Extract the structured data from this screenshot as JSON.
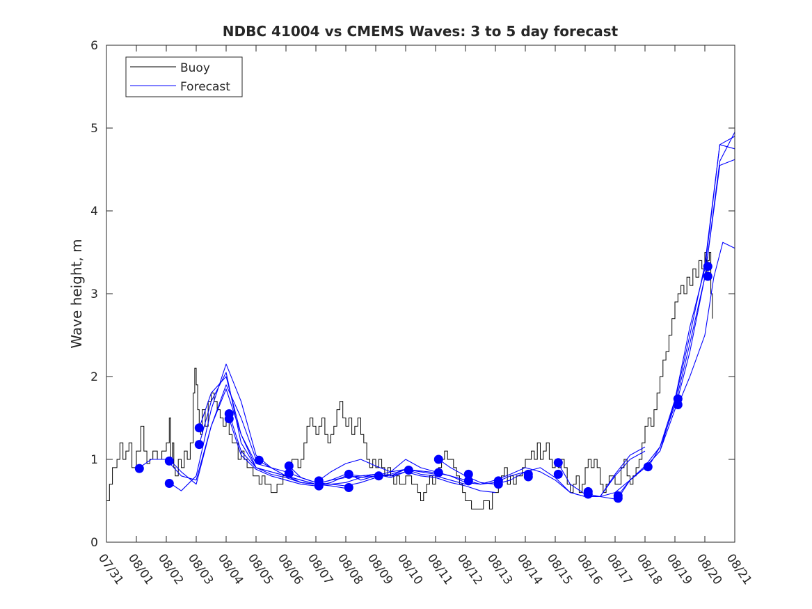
{
  "colors": {
    "buoy": "#000000",
    "forecast": "#0000ff",
    "axes": "#262626",
    "background": "#ffffff"
  },
  "chart_data": {
    "type": "line",
    "title": "NDBC 41004 vs CMEMS Waves: 3 to 5 day forecast",
    "xlabel": "",
    "ylabel": "Wave height, m",
    "xlim": [
      "07/31",
      "08/21"
    ],
    "ylim": [
      0,
      6
    ],
    "grid": false,
    "legend_position": "top-left",
    "x_tick_labels": [
      "07/31",
      "08/01",
      "08/02",
      "08/03",
      "08/04",
      "08/05",
      "08/06",
      "08/07",
      "08/08",
      "08/09",
      "08/10",
      "08/11",
      "08/12",
      "08/13",
      "08/14",
      "08/15",
      "08/16",
      "08/17",
      "08/18",
      "08/19",
      "08/20",
      "08/21"
    ],
    "y_ticks": [
      0,
      1,
      2,
      3,
      4,
      5,
      6
    ],
    "legend": [
      {
        "label": "Buoy",
        "color": "#000000"
      },
      {
        "label": "Forecast",
        "color": "#0000ff"
      }
    ],
    "buoy": {
      "name": "Buoy",
      "x": [
        0.0,
        0.1,
        0.2,
        0.35,
        0.45,
        0.55,
        0.65,
        0.75,
        0.85,
        1.0,
        1.15,
        1.25,
        1.35,
        1.45,
        1.55,
        1.7,
        1.85,
        2.0,
        2.1,
        2.15,
        2.2,
        2.25,
        2.3,
        2.4,
        2.5,
        2.6,
        2.7,
        2.8,
        2.9,
        2.95,
        3.0,
        3.05,
        3.1,
        3.15,
        3.2,
        3.3,
        3.4,
        3.5,
        3.6,
        3.7,
        3.8,
        3.9,
        4.0,
        4.1,
        4.2,
        4.3,
        4.4,
        4.5,
        4.6,
        4.7,
        4.8,
        4.9,
        5.0,
        5.1,
        5.2,
        5.3,
        5.4,
        5.5,
        5.6,
        5.7,
        5.8,
        5.9,
        6.0,
        6.1,
        6.2,
        6.3,
        6.4,
        6.5,
        6.6,
        6.7,
        6.8,
        6.9,
        7.0,
        7.1,
        7.2,
        7.3,
        7.4,
        7.5,
        7.6,
        7.7,
        7.8,
        7.9,
        8.0,
        8.1,
        8.2,
        8.3,
        8.4,
        8.5,
        8.6,
        8.7,
        8.8,
        8.9,
        9.0,
        9.1,
        9.2,
        9.3,
        9.4,
        9.5,
        9.6,
        9.7,
        9.8,
        9.9,
        10.0,
        10.1,
        10.2,
        10.3,
        10.4,
        10.5,
        10.6,
        10.7,
        10.8,
        10.9,
        11.0,
        11.1,
        11.2,
        11.3,
        11.4,
        11.5,
        11.6,
        11.7,
        11.8,
        11.9,
        12.0,
        12.1,
        12.2,
        12.3,
        12.4,
        12.5,
        12.6,
        12.7,
        12.8,
        12.9,
        13.0,
        13.1,
        13.2,
        13.3,
        13.4,
        13.5,
        13.6,
        13.7,
        13.8,
        13.9,
        14.0,
        14.1,
        14.2,
        14.3,
        14.4,
        14.5,
        14.6,
        14.7,
        14.8,
        14.9,
        15.0,
        15.1,
        15.2,
        15.3,
        15.4,
        15.5,
        15.6,
        15.7,
        15.8,
        15.9,
        16.0,
        16.1,
        16.2,
        16.3,
        16.4,
        16.5,
        16.6,
        16.7,
        16.8,
        16.9,
        17.0,
        17.1,
        17.2,
        17.3,
        17.4,
        17.5,
        17.6,
        17.7,
        17.8,
        17.9,
        18.0,
        18.1,
        18.2,
        18.3,
        18.4,
        18.5,
        18.6,
        18.7,
        18.8,
        18.9,
        19.0,
        19.1,
        19.2,
        19.3,
        19.4,
        19.5,
        19.6,
        19.7,
        19.8,
        19.9,
        20.0,
        20.05,
        20.1,
        20.15,
        20.2,
        20.25
      ],
      "values": [
        0.5,
        0.7,
        0.9,
        1.0,
        1.2,
        1.0,
        1.1,
        1.2,
        0.9,
        1.1,
        1.4,
        1.1,
        0.95,
        1.0,
        1.1,
        1.0,
        1.1,
        1.2,
        1.5,
        1.0,
        1.2,
        0.9,
        0.8,
        1.0,
        0.9,
        1.1,
        1.0,
        1.2,
        1.8,
        2.1,
        1.9,
        1.6,
        1.4,
        1.3,
        1.6,
        1.4,
        1.7,
        1.8,
        1.7,
        1.6,
        1.5,
        1.4,
        1.5,
        1.3,
        1.2,
        1.2,
        1.0,
        1.1,
        1.0,
        0.9,
        0.9,
        0.8,
        0.8,
        0.7,
        0.8,
        0.7,
        0.7,
        0.6,
        0.6,
        0.7,
        0.7,
        0.8,
        0.8,
        0.9,
        1.0,
        1.0,
        0.9,
        1.0,
        1.2,
        1.4,
        1.5,
        1.4,
        1.3,
        1.4,
        1.5,
        1.3,
        1.2,
        1.3,
        1.4,
        1.6,
        1.7,
        1.5,
        1.4,
        1.5,
        1.3,
        1.4,
        1.5,
        1.3,
        1.2,
        1.0,
        0.9,
        1.0,
        0.9,
        1.0,
        0.9,
        0.8,
        0.9,
        0.8,
        0.7,
        0.8,
        0.7,
        0.7,
        0.8,
        0.8,
        0.7,
        0.7,
        0.6,
        0.5,
        0.6,
        0.7,
        0.8,
        0.7,
        0.8,
        0.9,
        1.0,
        1.1,
        1.0,
        1.0,
        0.9,
        0.8,
        0.7,
        0.6,
        0.5,
        0.5,
        0.4,
        0.4,
        0.4,
        0.4,
        0.5,
        0.5,
        0.4,
        0.6,
        0.6,
        0.7,
        0.8,
        0.9,
        0.7,
        0.8,
        0.7,
        0.8,
        0.8,
        0.9,
        1.0,
        1.0,
        1.1,
        1.0,
        1.2,
        1.0,
        1.1,
        1.2,
        1.0,
        0.9,
        1.0,
        0.9,
        1.0,
        0.9,
        0.7,
        0.6,
        0.7,
        0.8,
        0.6,
        0.7,
        0.9,
        1.0,
        0.9,
        1.0,
        0.9,
        0.7,
        0.6,
        0.7,
        0.8,
        0.8,
        0.7,
        0.7,
        0.9,
        1.0,
        0.8,
        0.7,
        0.8,
        0.9,
        1.0,
        1.2,
        1.4,
        1.5,
        1.4,
        1.6,
        1.8,
        2.0,
        2.2,
        2.3,
        2.5,
        2.7,
        2.9,
        3.0,
        3.1,
        3.0,
        3.2,
        3.1,
        3.3,
        3.2,
        3.4,
        3.3,
        3.5,
        3.2,
        3.4,
        3.5,
        3.0,
        2.7
      ]
    },
    "forecast": {
      "name": "Forecast",
      "series": [
        {
          "x": [
            1.1,
            1.5,
            2.0,
            2.5,
            3.0,
            3.5,
            4.0,
            4.5,
            5.0,
            5.5,
            6.0,
            6.5,
            7.0
          ],
          "values": [
            0.9,
            1.0,
            1.0,
            0.8,
            0.75,
            1.4,
            1.9,
            1.5,
            1.0,
            0.9,
            0.8,
            0.72,
            0.7
          ]
        },
        {
          "x": [
            2.1,
            2.5,
            3.0,
            3.5,
            4.0,
            4.5,
            5.0,
            5.5,
            6.0,
            6.5,
            7.0,
            7.5,
            8.0
          ],
          "values": [
            1.0,
            0.85,
            0.7,
            1.4,
            1.85,
            1.3,
            0.9,
            0.85,
            0.8,
            0.75,
            0.7,
            0.68,
            0.65
          ]
        },
        {
          "x": [
            2.1,
            2.5,
            3.0,
            3.5,
            4.0,
            4.5,
            5.0,
            5.5,
            6.0,
            6.5,
            7.0,
            7.5,
            8.0,
            8.5,
            9.0
          ],
          "values": [
            0.72,
            0.62,
            0.8,
            1.6,
            2.15,
            1.7,
            1.05,
            0.9,
            0.8,
            0.72,
            0.7,
            0.7,
            0.68,
            0.72,
            0.78
          ]
        },
        {
          "x": [
            3.1,
            3.5,
            4.0,
            4.5,
            5.0,
            5.5,
            6.0,
            6.5,
            7.0,
            7.5,
            8.0,
            8.5,
            9.0,
            9.5,
            10.0
          ],
          "values": [
            1.38,
            1.8,
            2.0,
            1.3,
            0.95,
            0.9,
            0.85,
            0.78,
            0.72,
            0.7,
            0.72,
            0.78,
            0.82,
            0.8,
            0.85
          ]
        },
        {
          "x": [
            3.1,
            3.5,
            4.0,
            4.5,
            5.0,
            5.5,
            6.0,
            6.5,
            7.0,
            7.5,
            8.0,
            8.5,
            9.0,
            9.5,
            10.0,
            10.5,
            11.0
          ],
          "values": [
            1.18,
            1.7,
            2.05,
            1.2,
            0.9,
            0.85,
            0.8,
            0.75,
            0.7,
            0.75,
            0.78,
            0.8,
            0.82,
            0.8,
            0.88,
            0.85,
            0.82
          ]
        },
        {
          "x": [
            4.1,
            4.5,
            5.0,
            5.5,
            6.0,
            6.5,
            7.0,
            7.5,
            8.0,
            8.5,
            9.0,
            9.5,
            10.0,
            10.5,
            11.0,
            11.5,
            12.0
          ],
          "values": [
            1.49,
            1.05,
            0.88,
            0.8,
            0.75,
            0.7,
            0.68,
            0.72,
            0.8,
            0.78,
            0.8,
            0.82,
            0.88,
            0.82,
            0.8,
            0.75,
            0.7
          ]
        },
        {
          "x": [
            4.1,
            4.5,
            5.0,
            5.5,
            6.0,
            6.5,
            7.0,
            7.5,
            8.0,
            8.5,
            9.0,
            9.5,
            10.0,
            10.5,
            11.0,
            11.5,
            12.0,
            12.5,
            13.0
          ],
          "values": [
            1.55,
            1.1,
            0.9,
            0.82,
            0.78,
            0.72,
            0.7,
            0.75,
            0.82,
            0.8,
            0.82,
            0.78,
            0.85,
            0.8,
            0.78,
            0.72,
            0.68,
            0.62,
            0.6
          ]
        },
        {
          "x": [
            6.1,
            6.5,
            7.0,
            7.5,
            8.0,
            8.5,
            9.0,
            9.5,
            10.0,
            10.5,
            11.0,
            11.5,
            12.0,
            12.5,
            13.0,
            13.5,
            14.0
          ],
          "values": [
            0.92,
            0.78,
            0.72,
            0.85,
            0.95,
            1.0,
            0.92,
            0.85,
            1.0,
            0.9,
            0.85,
            0.8,
            0.75,
            0.7,
            0.72,
            0.8,
            0.85
          ]
        },
        {
          "x": [
            8.1,
            8.5,
            9.0,
            9.5,
            10.0,
            10.5,
            11.0,
            11.5,
            12.0,
            12.5,
            13.0,
            13.5,
            14.0,
            14.5,
            15.0,
            15.5,
            16.0,
            16.5,
            17.0,
            17.5,
            18.0
          ],
          "values": [
            0.82,
            0.75,
            0.8,
            0.85,
            0.88,
            0.86,
            0.84,
            0.8,
            0.72,
            0.7,
            0.75,
            0.82,
            0.9,
            0.85,
            0.75,
            0.6,
            0.55,
            0.55,
            0.8,
            1.0,
            1.1
          ]
        },
        {
          "x": [
            11.1,
            11.5,
            12.0,
            12.5,
            13.0,
            13.5,
            14.0,
            14.5,
            15.0,
            15.5,
            16.0,
            16.5,
            17.0,
            17.5,
            18.0
          ],
          "values": [
            1.0,
            0.9,
            0.8,
            0.72,
            0.7,
            0.75,
            0.85,
            0.9,
            0.78,
            0.6,
            0.55,
            0.55,
            0.82,
            1.05,
            1.15
          ]
        },
        {
          "x": [
            15.1,
            15.5,
            16.0,
            16.5,
            17.0,
            17.5,
            18.0,
            18.5,
            19.0,
            19.5,
            20.0,
            20.5,
            21.0
          ],
          "values": [
            0.95,
            0.7,
            0.58,
            0.55,
            0.6,
            0.75,
            0.9,
            1.1,
            1.6,
            2.3,
            3.2,
            4.6,
            4.95
          ]
        },
        {
          "x": [
            16.1,
            16.5,
            17.0,
            17.5,
            18.0,
            18.5,
            19.0,
            19.5,
            20.0,
            20.5,
            21.0
          ],
          "values": [
            0.58,
            0.55,
            0.52,
            0.75,
            0.9,
            1.1,
            1.7,
            2.5,
            3.35,
            4.8,
            4.75
          ]
        },
        {
          "x": [
            17.1,
            17.5,
            18.0,
            18.5,
            19.0,
            19.5,
            20.0,
            20.5,
            21.0
          ],
          "values": [
            0.53,
            0.75,
            0.92,
            1.15,
            1.65,
            2.4,
            3.2,
            4.55,
            4.62
          ]
        },
        {
          "x": [
            18.1,
            18.5,
            19.0,
            19.5,
            20.0,
            20.5,
            21.0
          ],
          "values": [
            0.9,
            1.15,
            1.72,
            2.6,
            3.3,
            4.8,
            4.9
          ]
        },
        {
          "x": [
            19.1,
            19.5,
            20.0,
            20.3,
            20.6,
            21.0
          ],
          "values": [
            1.65,
            2.0,
            2.5,
            3.2,
            3.62,
            3.55
          ]
        }
      ],
      "markers": [
        {
          "x": 1.1,
          "y": 0.89
        },
        {
          "x": 2.1,
          "y": 0.98
        },
        {
          "x": 2.1,
          "y": 0.71
        },
        {
          "x": 3.1,
          "y": 1.38
        },
        {
          "x": 3.1,
          "y": 1.18
        },
        {
          "x": 4.1,
          "y": 1.55
        },
        {
          "x": 4.1,
          "y": 1.49
        },
        {
          "x": 5.1,
          "y": 0.99
        },
        {
          "x": 6.1,
          "y": 0.92
        },
        {
          "x": 6.1,
          "y": 0.83
        },
        {
          "x": 7.1,
          "y": 0.74
        },
        {
          "x": 7.1,
          "y": 0.68
        },
        {
          "x": 8.1,
          "y": 0.82
        },
        {
          "x": 8.1,
          "y": 0.66
        },
        {
          "x": 9.1,
          "y": 0.8
        },
        {
          "x": 10.1,
          "y": 0.87
        },
        {
          "x": 11.1,
          "y": 1.0
        },
        {
          "x": 11.1,
          "y": 0.84
        },
        {
          "x": 12.1,
          "y": 0.82
        },
        {
          "x": 12.1,
          "y": 0.74
        },
        {
          "x": 13.1,
          "y": 0.74
        },
        {
          "x": 13.1,
          "y": 0.7
        },
        {
          "x": 14.1,
          "y": 0.82
        },
        {
          "x": 14.1,
          "y": 0.79
        },
        {
          "x": 15.1,
          "y": 0.96
        },
        {
          "x": 15.1,
          "y": 0.82
        },
        {
          "x": 16.1,
          "y": 0.61
        },
        {
          "x": 16.1,
          "y": 0.58
        },
        {
          "x": 17.1,
          "y": 0.56
        },
        {
          "x": 17.1,
          "y": 0.53
        },
        {
          "x": 18.1,
          "y": 0.91
        },
        {
          "x": 19.1,
          "y": 1.73
        },
        {
          "x": 19.1,
          "y": 1.66
        },
        {
          "x": 20.1,
          "y": 3.33
        },
        {
          "x": 20.1,
          "y": 3.21
        }
      ]
    }
  }
}
